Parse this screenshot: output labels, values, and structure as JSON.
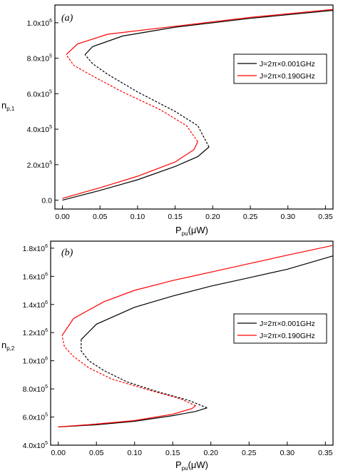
{
  "chart_data": [
    {
      "type": "line",
      "panel_label": "(a)",
      "xlabel_main": "P",
      "xlabel_sub": "pu",
      "xlabel_unit": "(μW)",
      "ylabel_main": "n",
      "ylabel_sub": "p,1",
      "xlim": [
        -0.01,
        0.36
      ],
      "ylim": [
        -50000,
        1100000
      ],
      "x_ticks": [
        0.0,
        0.05,
        0.1,
        0.15,
        0.2,
        0.25,
        0.3,
        0.35
      ],
      "x_tick_labels": [
        "0.00",
        "0.05",
        "0.10",
        "0.15",
        "0.20",
        "0.25",
        "0.30",
        "0.35"
      ],
      "y_ticks": [
        {
          "value": 0,
          "mant": "0.0",
          "exp": ""
        },
        {
          "value": 200000,
          "mant": "2.0x10",
          "exp": "5"
        },
        {
          "value": 400000,
          "mant": "4.0x10",
          "exp": "5"
        },
        {
          "value": 600000,
          "mant": "6.0x10",
          "exp": "5"
        },
        {
          "value": 800000,
          "mant": "8.0x10",
          "exp": "5"
        },
        {
          "value": 1000000,
          "mant": "1.0x10",
          "exp": "6"
        }
      ],
      "legend_position": "right-middle",
      "series": [
        {
          "name": "J=2π×0.001GHz",
          "color": "#000000",
          "lower_stable": [
            [
              0.0,
              0
            ],
            [
              0.05,
              55000
            ],
            [
              0.1,
              115000
            ],
            [
              0.15,
              190000
            ],
            [
              0.18,
              245000
            ],
            [
              0.195,
              300000
            ]
          ],
          "unstable": [
            [
              0.195,
              300000
            ],
            [
              0.18,
              420000
            ],
            [
              0.15,
              500000
            ],
            [
              0.1,
              610000
            ],
            [
              0.06,
              710000
            ],
            [
              0.04,
              770000
            ],
            [
              0.03,
              820000
            ]
          ],
          "upper_stable": [
            [
              0.03,
              820000
            ],
            [
              0.04,
              865000
            ],
            [
              0.08,
              925000
            ],
            [
              0.15,
              975000
            ],
            [
              0.25,
              1025000
            ],
            [
              0.36,
              1070000
            ]
          ]
        },
        {
          "name": "J=2π×0.190GHz",
          "color": "#ff0000",
          "lower_stable": [
            [
              0.0,
              10000
            ],
            [
              0.05,
              70000
            ],
            [
              0.1,
              135000
            ],
            [
              0.15,
              215000
            ],
            [
              0.175,
              285000
            ],
            [
              0.18,
              330000
            ]
          ],
          "unstable": [
            [
              0.18,
              330000
            ],
            [
              0.165,
              420000
            ],
            [
              0.13,
              510000
            ],
            [
              0.08,
              610000
            ],
            [
              0.04,
              700000
            ],
            [
              0.015,
              760000
            ],
            [
              0.005,
              820000
            ]
          ],
          "upper_stable": [
            [
              0.005,
              820000
            ],
            [
              0.02,
              880000
            ],
            [
              0.06,
              935000
            ],
            [
              0.15,
              980000
            ],
            [
              0.25,
              1030000
            ],
            [
              0.36,
              1075000
            ]
          ]
        }
      ]
    },
    {
      "type": "line",
      "panel_label": "(b)",
      "xlabel_main": "P",
      "xlabel_sub": "pu",
      "xlabel_unit": "(μW)",
      "ylabel_main": "n",
      "ylabel_sub": "p,2",
      "xlim": [
        -0.01,
        0.36
      ],
      "ylim": [
        400000,
        1850000
      ],
      "x_ticks": [
        0.0,
        0.05,
        0.1,
        0.15,
        0.2,
        0.25,
        0.3,
        0.35
      ],
      "x_tick_labels": [
        "0.00",
        "0.05",
        "0.10",
        "0.15",
        "0.20",
        "0.25",
        "0.30",
        "0.35"
      ],
      "y_ticks": [
        {
          "value": 400000,
          "mant": "4.0x10",
          "exp": "5"
        },
        {
          "value": 600000,
          "mant": "6.0x10",
          "exp": "5"
        },
        {
          "value": 800000,
          "mant": "8.0x10",
          "exp": "5"
        },
        {
          "value": 1000000,
          "mant": "1.0x10",
          "exp": "6"
        },
        {
          "value": 1200000,
          "mant": "1.2x10",
          "exp": "6"
        },
        {
          "value": 1400000,
          "mant": "1.4x10",
          "exp": "6"
        },
        {
          "value": 1600000,
          "mant": "1.6x10",
          "exp": "6"
        },
        {
          "value": 1800000,
          "mant": "1.8x10",
          "exp": "6"
        }
      ],
      "legend_position": "right-middle",
      "series": [
        {
          "name": "J=2π×0.001GHz",
          "color": "#000000",
          "lower_stable": [
            [
              0.0,
              530000
            ],
            [
              0.05,
              545000
            ],
            [
              0.1,
              570000
            ],
            [
              0.15,
              610000
            ],
            [
              0.18,
              640000
            ],
            [
              0.195,
              665000
            ]
          ],
          "unstable": [
            [
              0.195,
              665000
            ],
            [
              0.17,
              720000
            ],
            [
              0.13,
              780000
            ],
            [
              0.09,
              850000
            ],
            [
              0.06,
              930000
            ],
            [
              0.04,
              1000000
            ],
            [
              0.03,
              1070000
            ],
            [
              0.03,
              1150000
            ]
          ],
          "upper_stable": [
            [
              0.03,
              1150000
            ],
            [
              0.05,
              1260000
            ],
            [
              0.1,
              1380000
            ],
            [
              0.15,
              1460000
            ],
            [
              0.2,
              1530000
            ],
            [
              0.25,
              1590000
            ],
            [
              0.3,
              1650000
            ],
            [
              0.36,
              1745000
            ]
          ]
        },
        {
          "name": "J=2π×0.190GHz",
          "color": "#ff0000",
          "lower_stable": [
            [
              0.0,
              530000
            ],
            [
              0.05,
              550000
            ],
            [
              0.1,
              575000
            ],
            [
              0.15,
              620000
            ],
            [
              0.175,
              660000
            ],
            [
              0.18,
              680000
            ]
          ],
          "unstable": [
            [
              0.18,
              680000
            ],
            [
              0.16,
              730000
            ],
            [
              0.12,
              790000
            ],
            [
              0.07,
              870000
            ],
            [
              0.04,
              950000
            ],
            [
              0.02,
              1030000
            ],
            [
              0.008,
              1100000
            ],
            [
              0.005,
              1180000
            ]
          ],
          "upper_stable": [
            [
              0.005,
              1180000
            ],
            [
              0.02,
              1300000
            ],
            [
              0.06,
              1420000
            ],
            [
              0.1,
              1500000
            ],
            [
              0.15,
              1570000
            ],
            [
              0.2,
              1630000
            ],
            [
              0.25,
              1690000
            ],
            [
              0.3,
              1750000
            ],
            [
              0.36,
              1820000
            ]
          ]
        }
      ]
    }
  ]
}
